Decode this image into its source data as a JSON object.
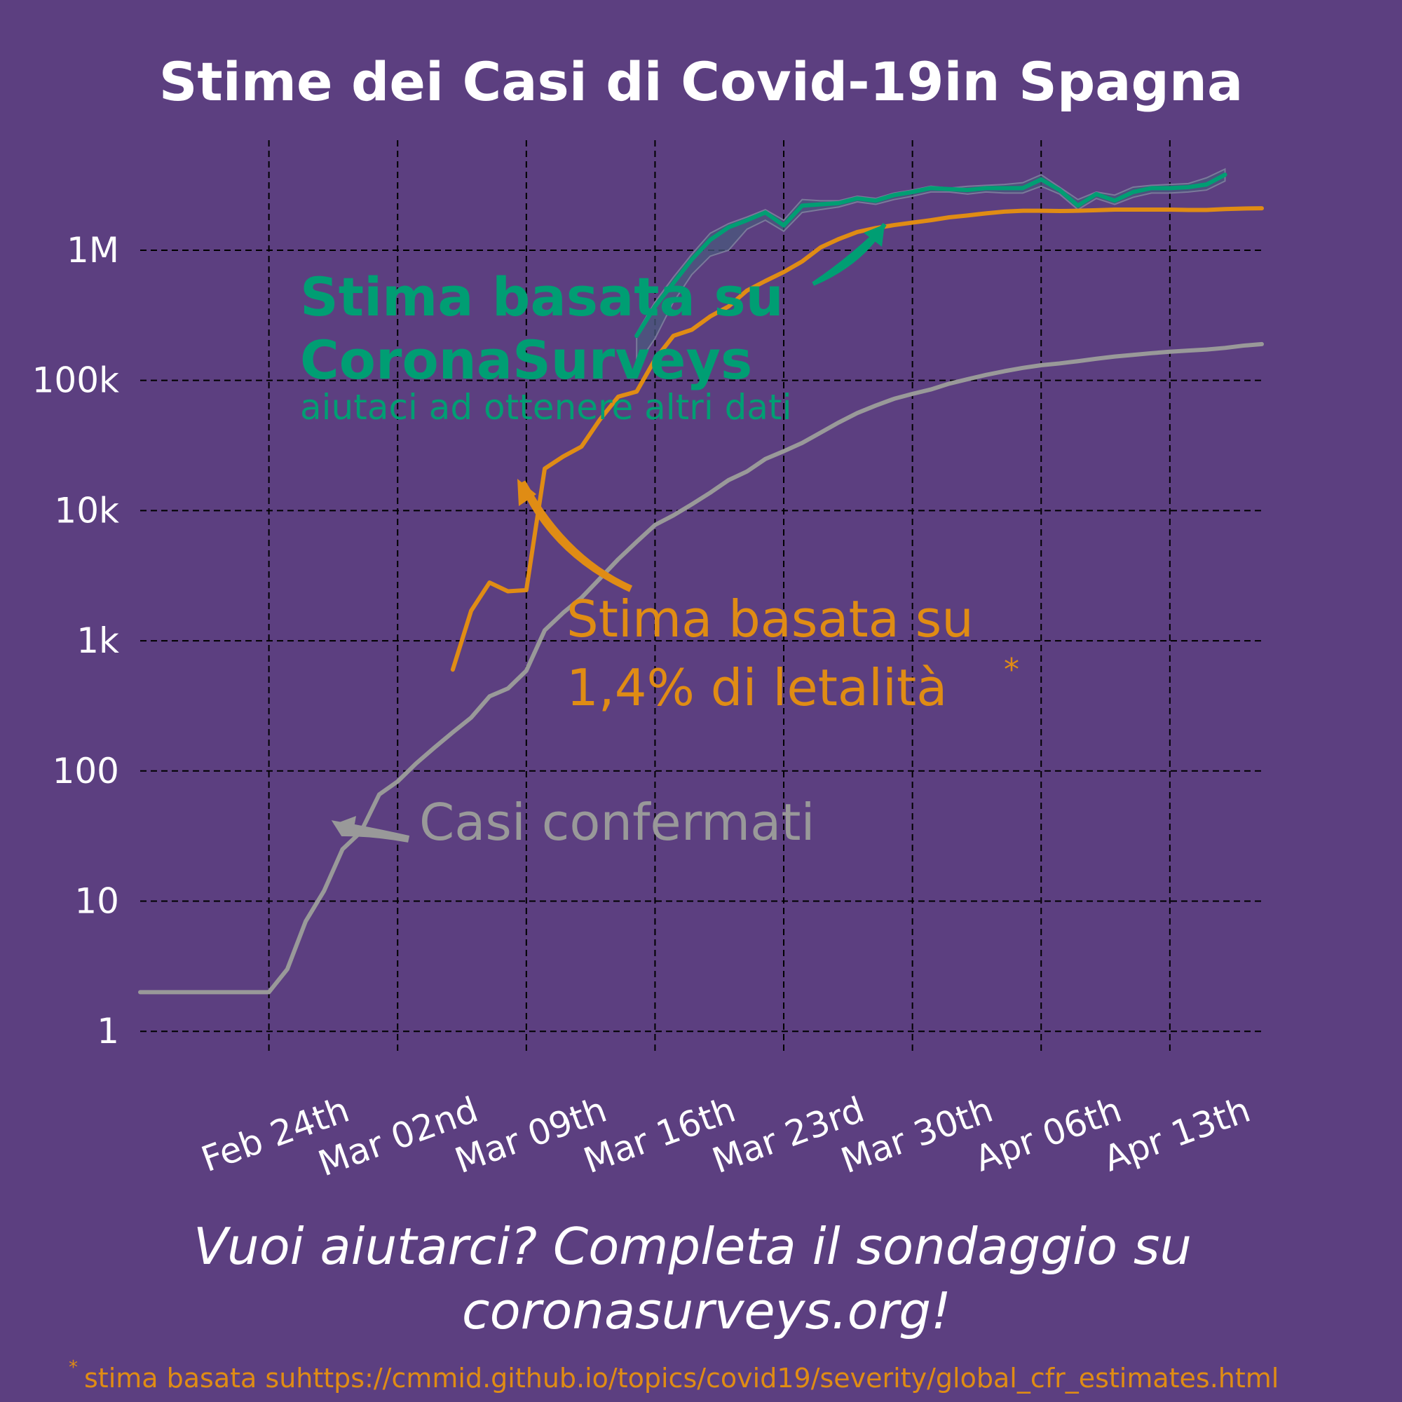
{
  "colors": {
    "background": "#5c3f80",
    "confirmed": "#999999",
    "cfr": "#e08c14",
    "surveys": "#009e73",
    "surveys_band": "#4a5a7e",
    "text": "#ffffff"
  },
  "chart_data": {
    "type": "line",
    "title": "Stime dei Casi di Covid-19in Spagna",
    "xlabel": "",
    "ylabel": "",
    "x_axis": {
      "type": "date",
      "range": [
        "2020-02-17",
        "2020-04-18"
      ],
      "tick_dates": [
        "2020-02-24",
        "2020-03-02",
        "2020-03-09",
        "2020-03-16",
        "2020-03-23",
        "2020-03-30",
        "2020-04-06",
        "2020-04-13"
      ],
      "tick_labels": [
        "Feb 24th",
        "Mar 02nd",
        "Mar 09th",
        "Mar 16th",
        "Mar 23rd",
        "Mar 30th",
        "Apr 06th",
        "Apr 13th"
      ]
    },
    "y_axis": {
      "scale": "log",
      "range": [
        0.7,
        7000000
      ],
      "ticks": [
        1,
        10,
        100,
        1000,
        10000,
        100000,
        1000000
      ],
      "tick_labels": [
        "1",
        "10",
        "100",
        "1k",
        "10k",
        "100k",
        "1M"
      ]
    },
    "grid": true,
    "series": [
      {
        "key": "confirmed",
        "annotation": "Casi confermati",
        "points": [
          [
            "2020-02-17",
            2
          ],
          [
            "2020-02-18",
            2
          ],
          [
            "2020-02-19",
            2
          ],
          [
            "2020-02-20",
            2
          ],
          [
            "2020-02-21",
            2
          ],
          [
            "2020-02-22",
            2
          ],
          [
            "2020-02-23",
            2
          ],
          [
            "2020-02-24",
            2
          ],
          [
            "2020-02-25",
            3
          ],
          [
            "2020-02-26",
            7
          ],
          [
            "2020-02-27",
            12
          ],
          [
            "2020-02-28",
            25
          ],
          [
            "2020-02-29",
            34
          ],
          [
            "2020-03-01",
            66
          ],
          [
            "2020-03-02",
            83
          ],
          [
            "2020-03-03",
            114
          ],
          [
            "2020-03-04",
            151
          ],
          [
            "2020-03-05",
            198
          ],
          [
            "2020-03-06",
            257
          ],
          [
            "2020-03-07",
            374
          ],
          [
            "2020-03-08",
            430
          ],
          [
            "2020-03-09",
            589
          ],
          [
            "2020-03-10",
            1204
          ],
          [
            "2020-03-11",
            1639
          ],
          [
            "2020-03-12",
            2140
          ],
          [
            "2020-03-13",
            3004
          ],
          [
            "2020-03-14",
            4231
          ],
          [
            "2020-03-15",
            5753
          ],
          [
            "2020-03-16",
            7753
          ],
          [
            "2020-03-17",
            9191
          ],
          [
            "2020-03-18",
            11178
          ],
          [
            "2020-03-19",
            13716
          ],
          [
            "2020-03-20",
            17147
          ],
          [
            "2020-03-21",
            19980
          ],
          [
            "2020-03-22",
            24926
          ],
          [
            "2020-03-23",
            28572
          ],
          [
            "2020-03-24",
            33089
          ],
          [
            "2020-03-25",
            39673
          ],
          [
            "2020-03-26",
            47610
          ],
          [
            "2020-03-27",
            56188
          ],
          [
            "2020-03-28",
            64059
          ],
          [
            "2020-03-29",
            72248
          ],
          [
            "2020-03-30",
            78797
          ],
          [
            "2020-03-31",
            85195
          ],
          [
            "2020-04-01",
            94417
          ],
          [
            "2020-04-02",
            102136
          ],
          [
            "2020-04-03",
            110238
          ],
          [
            "2020-04-04",
            117710
          ],
          [
            "2020-04-05",
            124736
          ],
          [
            "2020-04-06",
            130759
          ],
          [
            "2020-04-07",
            135032
          ],
          [
            "2020-04-08",
            140510
          ],
          [
            "2020-04-09",
            146690
          ],
          [
            "2020-04-10",
            152446
          ],
          [
            "2020-04-11",
            157022
          ],
          [
            "2020-04-12",
            161852
          ],
          [
            "2020-04-13",
            166019
          ],
          [
            "2020-04-14",
            169496
          ],
          [
            "2020-04-15",
            172541
          ],
          [
            "2020-04-16",
            177644
          ],
          [
            "2020-04-17",
            184948
          ],
          [
            "2020-04-18",
            190000
          ]
        ]
      },
      {
        "key": "cfr",
        "annotation": "Stima basata su 1,4% di letalità",
        "points": [
          [
            "2020-03-05",
            600
          ],
          [
            "2020-03-06",
            1700
          ],
          [
            "2020-03-07",
            2800
          ],
          [
            "2020-03-08",
            2400
          ],
          [
            "2020-03-09",
            2450
          ],
          [
            "2020-03-10",
            21000
          ],
          [
            "2020-03-11",
            26000
          ],
          [
            "2020-03-12",
            31000
          ],
          [
            "2020-03-13",
            50000
          ],
          [
            "2020-03-14",
            75000
          ],
          [
            "2020-03-15",
            82000
          ],
          [
            "2020-03-16",
            145000
          ],
          [
            "2020-03-17",
            220000
          ],
          [
            "2020-03-18",
            245000
          ],
          [
            "2020-03-19",
            310000
          ],
          [
            "2020-03-20",
            370000
          ],
          [
            "2020-03-21",
            490000
          ],
          [
            "2020-03-22",
            580000
          ],
          [
            "2020-03-23",
            680000
          ],
          [
            "2020-03-24",
            820000
          ],
          [
            "2020-03-25",
            1050000
          ],
          [
            "2020-03-26",
            1220000
          ],
          [
            "2020-03-27",
            1380000
          ],
          [
            "2020-03-28",
            1480000
          ],
          [
            "2020-03-29",
            1560000
          ],
          [
            "2020-03-30",
            1630000
          ],
          [
            "2020-03-31",
            1700000
          ],
          [
            "2020-04-01",
            1790000
          ],
          [
            "2020-04-02",
            1850000
          ],
          [
            "2020-04-03",
            1920000
          ],
          [
            "2020-04-04",
            1980000
          ],
          [
            "2020-04-05",
            2010000
          ],
          [
            "2020-04-06",
            2010000
          ],
          [
            "2020-04-07",
            2000000
          ],
          [
            "2020-04-08",
            2010000
          ],
          [
            "2020-04-09",
            2030000
          ],
          [
            "2020-04-10",
            2050000
          ],
          [
            "2020-04-11",
            2050000
          ],
          [
            "2020-04-12",
            2050000
          ],
          [
            "2020-04-13",
            2050000
          ],
          [
            "2020-04-14",
            2040000
          ],
          [
            "2020-04-15",
            2040000
          ],
          [
            "2020-04-16",
            2070000
          ],
          [
            "2020-04-17",
            2090000
          ],
          [
            "2020-04-18",
            2100000
          ]
        ]
      },
      {
        "key": "surveys",
        "annotation": "Stima basata su CoronaSurveys",
        "points": [
          [
            "2020-03-15",
            220000
          ],
          [
            "2020-03-16",
            370000
          ],
          [
            "2020-03-17",
            560000
          ],
          [
            "2020-03-18",
            850000
          ],
          [
            "2020-03-19",
            1200000
          ],
          [
            "2020-03-20",
            1500000
          ],
          [
            "2020-03-21",
            1700000
          ],
          [
            "2020-03-22",
            1950000
          ],
          [
            "2020-03-23",
            1550000
          ],
          [
            "2020-03-24",
            2200000
          ],
          [
            "2020-03-25",
            2250000
          ],
          [
            "2020-03-26",
            2300000
          ],
          [
            "2020-03-27",
            2500000
          ],
          [
            "2020-03-28",
            2400000
          ],
          [
            "2020-03-29",
            2650000
          ],
          [
            "2020-03-30",
            2800000
          ],
          [
            "2020-03-31",
            3000000
          ],
          [
            "2020-04-01",
            2950000
          ],
          [
            "2020-04-02",
            2900000
          ],
          [
            "2020-04-03",
            3000000
          ],
          [
            "2020-04-04",
            3000000
          ],
          [
            "2020-04-05",
            3000000
          ],
          [
            "2020-04-06",
            3500000
          ],
          [
            "2020-04-07",
            2900000
          ],
          [
            "2020-04-08",
            2200000
          ],
          [
            "2020-04-09",
            2700000
          ],
          [
            "2020-04-10",
            2400000
          ],
          [
            "2020-04-11",
            2800000
          ],
          [
            "2020-04-12",
            3000000
          ],
          [
            "2020-04-13",
            3000000
          ],
          [
            "2020-04-14",
            3050000
          ],
          [
            "2020-04-15",
            3200000
          ],
          [
            "2020-04-16",
            3800000
          ]
        ],
        "band": {
          "upper": [
            230000,
            400000,
            620000,
            930000,
            1350000,
            1600000,
            1800000,
            2050000,
            1700000,
            2450000,
            2400000,
            2400000,
            2600000,
            2500000,
            2750000,
            2900000,
            3100000,
            3000000,
            3100000,
            3150000,
            3200000,
            3300000,
            3800000,
            3050000,
            2450000,
            2800000,
            2650000,
            3050000,
            3150000,
            3200000,
            3250000,
            3600000,
            4200000
          ],
          "lower": [
            130000,
            210000,
            400000,
            650000,
            900000,
            1000000,
            1450000,
            1700000,
            1400000,
            1950000,
            2050000,
            2150000,
            2350000,
            2250000,
            2450000,
            2600000,
            2800000,
            2800000,
            2700000,
            2800000,
            2750000,
            2750000,
            3100000,
            2700000,
            2050000,
            2500000,
            2250000,
            2550000,
            2750000,
            2750000,
            2800000,
            2900000,
            3400000
          ]
        }
      }
    ],
    "annotations": {
      "surveys_title_1": "Stima basata su",
      "surveys_title_2": "CoronaSurveys",
      "surveys_sub": "aiutaci ad ottenere altri dati",
      "cfr_line_1": "Stima basata su",
      "cfr_line_2": "1,4% di letalità",
      "cfr_star": "*",
      "confirmed_label": "Casi confermati"
    }
  },
  "cta": {
    "line1": "Vuoi aiutarci? Completa il sondaggio su",
    "line2": "coronasurveys.org!"
  },
  "footnote": {
    "star": "*",
    "text": "stima basata suhttps://cmmid.github.io/topics/covid19/severity/global_cfr_estimates.html"
  }
}
